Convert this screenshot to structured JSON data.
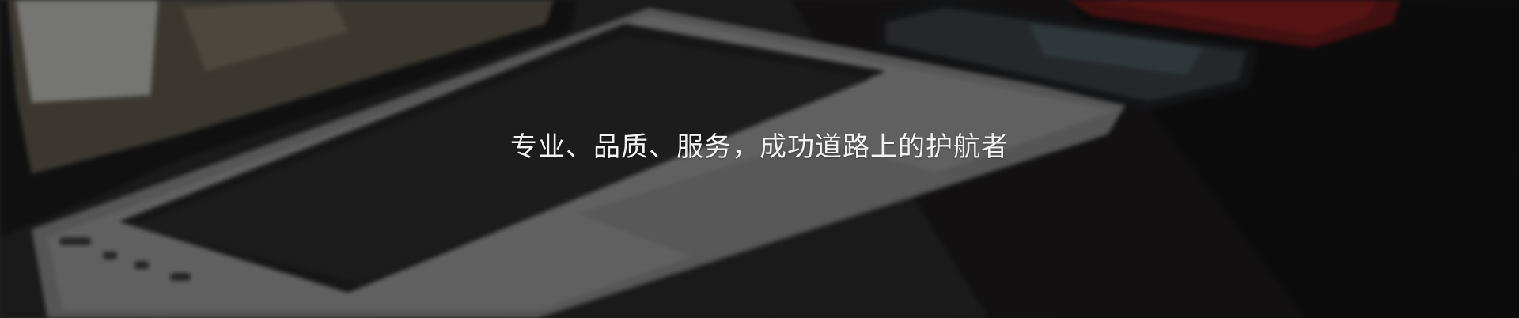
{
  "banner": {
    "tagline": "专业、品质、服务，成功道路上的护航者",
    "image_subject": "laptop-phone-desk-photo",
    "overlay_color": "#000000",
    "text_color": "#f2f2f2"
  }
}
